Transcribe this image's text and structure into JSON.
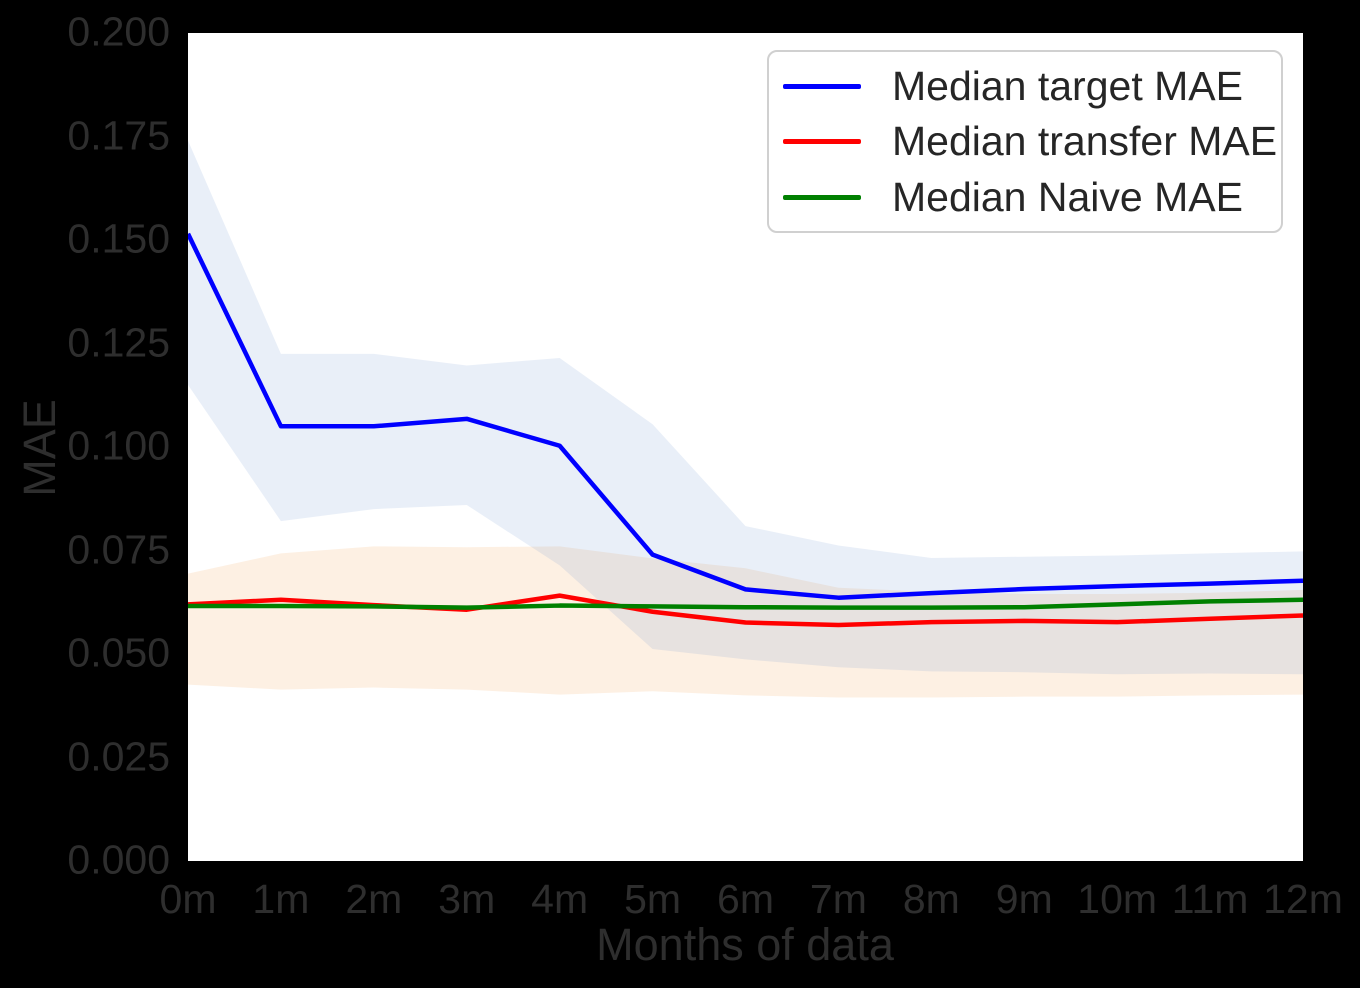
{
  "chart_data": {
    "type": "line",
    "title": "",
    "xlabel": "Months of data",
    "ylabel": "MAE",
    "x": [
      0,
      1,
      2,
      3,
      4,
      5,
      6,
      7,
      8,
      9,
      10,
      11,
      12
    ],
    "x_tick_labels": [
      "0m",
      "1m",
      "2m",
      "3m",
      "4m",
      "5m",
      "6m",
      "7m",
      "8m",
      "9m",
      "10m",
      "11m",
      "12m"
    ],
    "y_ticks": [
      0.0,
      0.025,
      0.05,
      0.075,
      0.1,
      0.125,
      0.15,
      0.175,
      0.2
    ],
    "y_tick_labels": [
      "0.000",
      "0.025",
      "0.050",
      "0.075",
      "0.100",
      "0.125",
      "0.150",
      "0.175",
      "0.200"
    ],
    "xlim": [
      0,
      12
    ],
    "ylim": [
      0.0,
      0.2
    ],
    "grid": false,
    "legend_position": "upper right",
    "plot_background": "#ffffff",
    "figure_background": "#000000",
    "series": [
      {
        "name": "Median target MAE",
        "color": "#0000ff",
        "values": [
          0.1515,
          0.105,
          0.105,
          0.1068,
          0.1003,
          0.074,
          0.0656,
          0.0636,
          0.0647,
          0.0657,
          0.0664,
          0.067,
          0.0677
        ]
      },
      {
        "name": "Median transfer MAE",
        "color": "#ff0000",
        "values": [
          0.062,
          0.0631,
          0.0618,
          0.0607,
          0.0641,
          0.0602,
          0.0576,
          0.057,
          0.0577,
          0.058,
          0.0577,
          0.0585,
          0.0593
        ]
      },
      {
        "name": "Median Naive MAE",
        "color": "#008000",
        "values": [
          0.0616,
          0.0616,
          0.0615,
          0.0612,
          0.0617,
          0.0615,
          0.0613,
          0.0612,
          0.0612,
          0.0613,
          0.062,
          0.0627,
          0.0631
        ]
      }
    ],
    "bands": [
      {
        "series": "Median transfer MAE",
        "fill": "rgba(242,155,68,0.15)",
        "upper": [
          0.0694,
          0.0743,
          0.076,
          0.0758,
          0.076,
          0.0731,
          0.0707,
          0.066,
          0.065,
          0.0645,
          0.0645,
          0.0648,
          0.0655
        ],
        "lower": [
          0.0426,
          0.0414,
          0.0419,
          0.0414,
          0.0402,
          0.041,
          0.04,
          0.0395,
          0.0395,
          0.0397,
          0.0397,
          0.04,
          0.0402
        ]
      },
      {
        "series": "Median target MAE",
        "fill": "rgba(108,148,208,0.15)",
        "upper": [
          0.174,
          0.1225,
          0.1225,
          0.1197,
          0.1215,
          0.1055,
          0.0809,
          0.0762,
          0.0732,
          0.0735,
          0.0738,
          0.0743,
          0.0748
        ],
        "lower": [
          0.115,
          0.0821,
          0.085,
          0.086,
          0.0714,
          0.0512,
          0.0487,
          0.0468,
          0.0458,
          0.0456,
          0.0451,
          0.0453,
          0.0451
        ]
      }
    ]
  }
}
